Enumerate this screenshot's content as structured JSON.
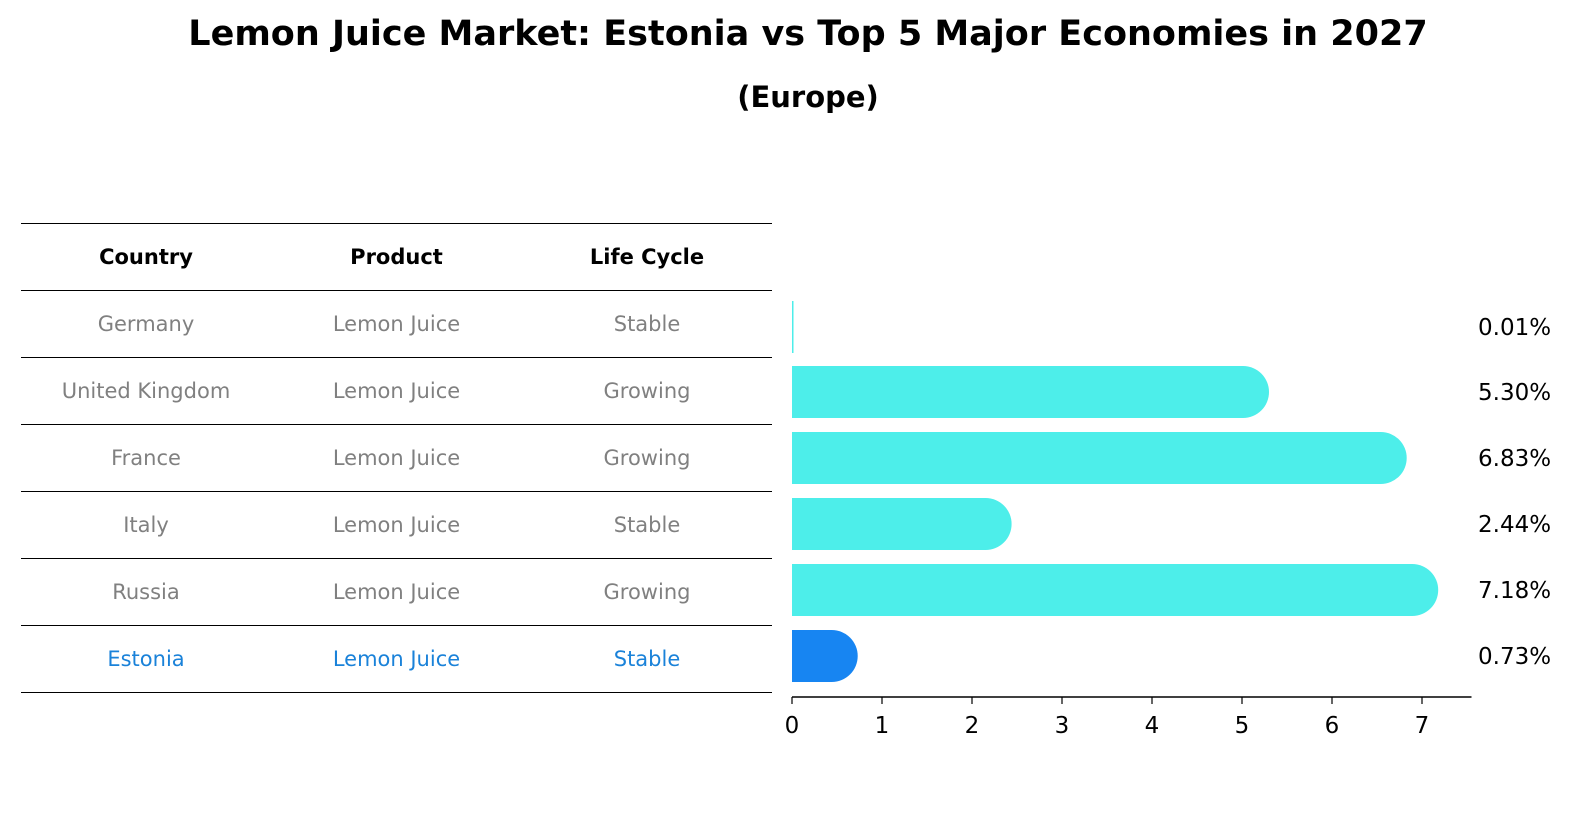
{
  "title": "Lemon Juice Market: Estonia vs Top 5 Major Economies in 2027",
  "subtitle": "(Europe)",
  "table": {
    "headers": [
      "Country",
      "Product",
      "Life Cycle"
    ],
    "rows": [
      [
        "Germany",
        "Lemon Juice",
        "Stable"
      ],
      [
        "United Kingdom",
        "Lemon Juice",
        "Growing"
      ],
      [
        "France",
        "Lemon Juice",
        "Growing"
      ],
      [
        "Italy",
        "Lemon Juice",
        "Stable"
      ],
      [
        "Russia",
        "Lemon Juice",
        "Growing"
      ],
      [
        "Estonia",
        "Lemon Juice",
        "Stable"
      ]
    ]
  },
  "chart_data": {
    "type": "bar",
    "orientation": "horizontal",
    "categories": [
      "Germany",
      "United Kingdom",
      "France",
      "Italy",
      "Russia",
      "Estonia"
    ],
    "values": [
      0.01,
      5.3,
      6.83,
      2.44,
      7.18,
      0.73
    ],
    "value_labels": [
      "0.01%",
      "5.30%",
      "6.83%",
      "2.44%",
      "7.18%",
      "0.73%"
    ],
    "highlight": "Estonia",
    "xlim": [
      0,
      7.55
    ],
    "xticks": [
      0,
      1,
      2,
      3,
      4,
      5,
      6,
      7
    ],
    "colors": {
      "default": "#4deeea",
      "highlight": "#1785f2"
    },
    "grid": false
  }
}
